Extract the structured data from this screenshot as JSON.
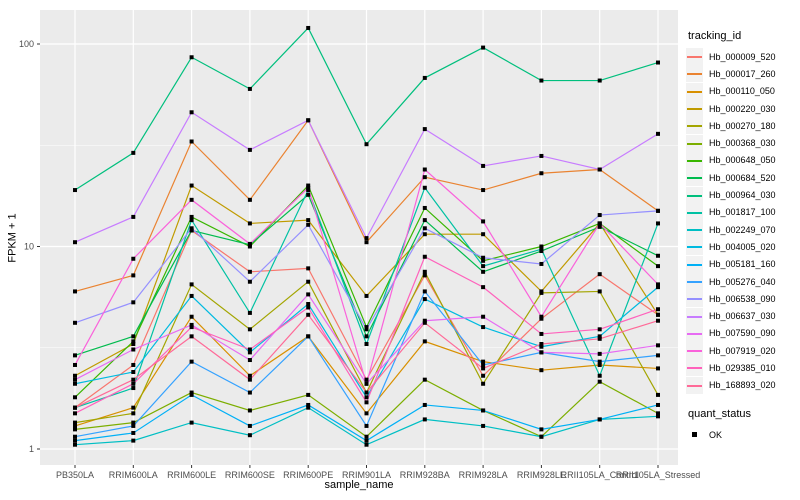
{
  "chart_data": {
    "type": "line",
    "title": "",
    "xlabel": "sample_name",
    "ylabel": "FPKM + 1",
    "y_scale": "log10",
    "ylim": [
      1,
      130
    ],
    "y_ticks": [
      "1",
      "10",
      "100"
    ],
    "y_tick_values": [
      1,
      10,
      100
    ],
    "y_minor_values": [
      3.1623,
      31.623
    ],
    "grid": true,
    "legend_position": "right",
    "panel_bg": "#EBEBEB",
    "grid_color": "#FFFFFF",
    "tick_label_color": "#4D4D4D",
    "marker": "black-square",
    "categories": [
      "PB350LA",
      "RRIM600LA",
      "RRIM600LE",
      "RRIM600SE",
      "RRIM600PE",
      "RRIM901LA",
      "RRIM928BA",
      "RRIM928LA",
      "RRIM928LE",
      "RRII105LA_Control",
      "RRII105LA_Stressed"
    ],
    "series": [
      {
        "name": "Hb_000009_520",
        "color": "#F8766D",
        "values": [
          1.6,
          2.6,
          12,
          7.5,
          7.8,
          2.2,
          7.2,
          2.3,
          4.4,
          7.3,
          4.6
        ]
      },
      {
        "name": "Hb_000017_260",
        "color": "#EA8331",
        "values": [
          6.0,
          7.2,
          33,
          17,
          42,
          10.5,
          22,
          19,
          23,
          24,
          15
        ]
      },
      {
        "name": "Hb_000110_050",
        "color": "#D89000",
        "values": [
          1.3,
          1.6,
          4.5,
          2.3,
          3.6,
          1.5,
          3.4,
          2.7,
          2.45,
          2.6,
          2.5
        ]
      },
      {
        "name": "Hb_000220_030",
        "color": "#C09B00",
        "values": [
          2.3,
          3.3,
          20,
          13,
          13.5,
          5.7,
          11.5,
          11.5,
          6.0,
          13,
          4.6
        ]
      },
      {
        "name": "Hb_000270_180",
        "color": "#A3A500",
        "values": [
          1.35,
          1.5,
          6.5,
          3.9,
          6.7,
          1.9,
          7.5,
          2.1,
          5.9,
          6.0,
          1.85
        ]
      },
      {
        "name": "Hb_000368_030",
        "color": "#7CAE00",
        "values": [
          1.25,
          1.35,
          1.9,
          1.55,
          1.85,
          1.15,
          2.2,
          1.55,
          1.15,
          2.15,
          1.5
        ]
      },
      {
        "name": "Hb_000648_050",
        "color": "#39B600",
        "values": [
          1.8,
          3.4,
          14,
          10,
          20,
          4.0,
          15.5,
          8.5,
          10,
          13,
          8.0
        ]
      },
      {
        "name": "Hb_000684_520",
        "color": "#00BB4E",
        "values": [
          2.9,
          3.6,
          12,
          10.2,
          18,
          3.6,
          13.5,
          7.5,
          9.5,
          12.5,
          9.0
        ]
      },
      {
        "name": "Hb_000964_030",
        "color": "#00BF7D",
        "values": [
          19,
          29,
          86,
          60,
          120,
          32,
          68,
          96,
          66,
          66,
          81
        ]
      },
      {
        "name": "Hb_001817_100",
        "color": "#00C1A3",
        "values": [
          1.6,
          2.0,
          13.5,
          4.7,
          19,
          3.3,
          19.5,
          8.0,
          9.7,
          2.3,
          13
        ]
      },
      {
        "name": "Hb_002249_070",
        "color": "#00BFC4",
        "values": [
          1.05,
          1.1,
          1.35,
          1.17,
          1.6,
          1.05,
          1.4,
          1.3,
          1.15,
          1.4,
          1.45
        ]
      },
      {
        "name": "Hb_004005_020",
        "color": "#00BAE0",
        "values": [
          2.1,
          2.4,
          5.7,
          3.0,
          5.2,
          1.8,
          5.5,
          4.0,
          3.2,
          3.6,
          6.3
        ]
      },
      {
        "name": "Hb_005181_160",
        "color": "#00B0F6",
        "values": [
          1.1,
          1.2,
          1.85,
          1.3,
          1.65,
          1.1,
          1.65,
          1.55,
          1.25,
          1.4,
          1.65
        ]
      },
      {
        "name": "Hb_005276_040",
        "color": "#35A2FF",
        "values": [
          1.15,
          1.3,
          2.7,
          1.9,
          3.6,
          1.3,
          6.0,
          2.6,
          3.0,
          2.7,
          2.9
        ]
      },
      {
        "name": "Hb_006538_090",
        "color": "#9590FF",
        "values": [
          4.2,
          5.3,
          12.3,
          6.7,
          12.8,
          3.9,
          12.3,
          8.8,
          8.2,
          14.3,
          15
        ]
      },
      {
        "name": "Hb_006637_030",
        "color": "#C77CFF",
        "values": [
          10.5,
          14,
          46,
          30,
          42,
          11,
          38,
          25,
          28,
          24,
          36
        ]
      },
      {
        "name": "Hb_007590_090",
        "color": "#E76BF3",
        "values": [
          2.2,
          3.1,
          4.1,
          2.75,
          5.8,
          2.1,
          4.3,
          4.5,
          3.0,
          2.95,
          3.25
        ]
      },
      {
        "name": "Hb_007919_020",
        "color": "#FA62DB",
        "values": [
          2.6,
          8.7,
          17,
          10.3,
          19.5,
          2.1,
          24,
          13.3,
          4.5,
          13,
          6.5
        ]
      },
      {
        "name": "Hb_029385_010",
        "color": "#FF62BC",
        "values": [
          1.5,
          2.1,
          4.0,
          3.1,
          5.0,
          1.7,
          8.9,
          6.3,
          3.7,
          3.9,
          4.9
        ]
      },
      {
        "name": "Hb_168893_020",
        "color": "#FF6A98",
        "values": [
          1.6,
          2.2,
          3.6,
          2.2,
          4.6,
          1.9,
          4.2,
          2.5,
          3.3,
          3.5,
          4.3
        ]
      }
    ],
    "legend": {
      "color_title": "tracking_id",
      "shape_title": "quant_status",
      "shape_items": [
        {
          "label": "OK",
          "marker": "black-square"
        }
      ]
    }
  }
}
